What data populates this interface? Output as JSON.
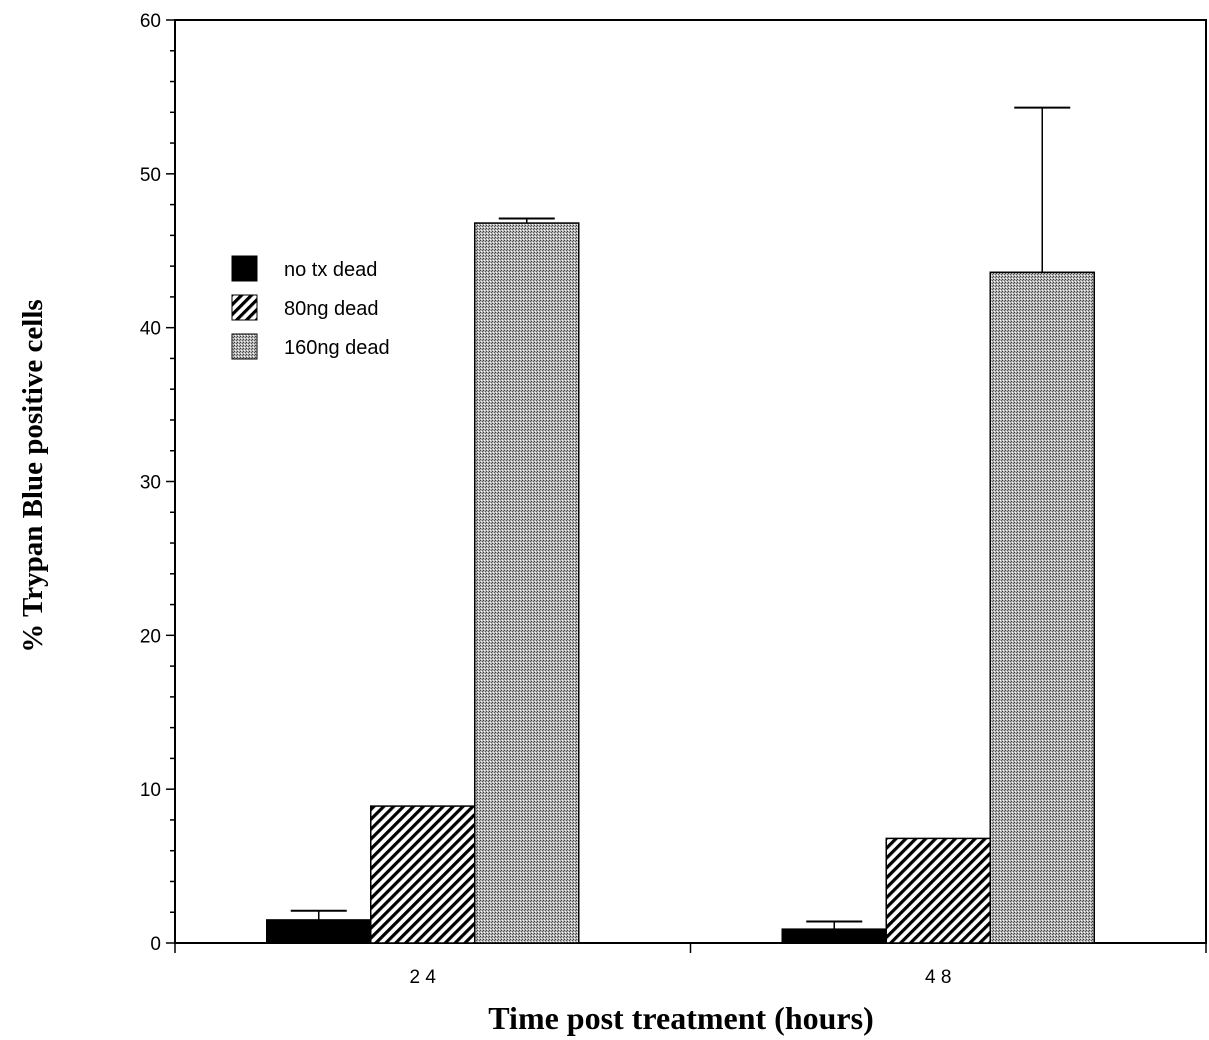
{
  "chart_data": {
    "type": "bar",
    "xlabel": "Time post treatment (hours)",
    "ylabel": "% Trypan Blue positive cells",
    "categories": [
      "2 4",
      "4 8"
    ],
    "ylim": [
      0,
      60
    ],
    "yticks": [
      0,
      10,
      20,
      30,
      40,
      50,
      60
    ],
    "grid": false,
    "legend_position": "top-left",
    "series": [
      {
        "name": "no tx dead",
        "values": [
          1.5,
          0.9
        ],
        "errors": [
          0.6,
          0.5
        ],
        "pattern": "solid",
        "color": "#000000"
      },
      {
        "name": "80ng dead",
        "values": [
          8.9,
          6.8
        ],
        "errors": [
          0,
          0
        ],
        "pattern": "hatch",
        "color": "#000000"
      },
      {
        "name": "160ng dead",
        "values": [
          46.8,
          43.6
        ],
        "errors": [
          0.3,
          10.7
        ],
        "pattern": "stipple",
        "color": "#9a9a9a"
      }
    ]
  }
}
